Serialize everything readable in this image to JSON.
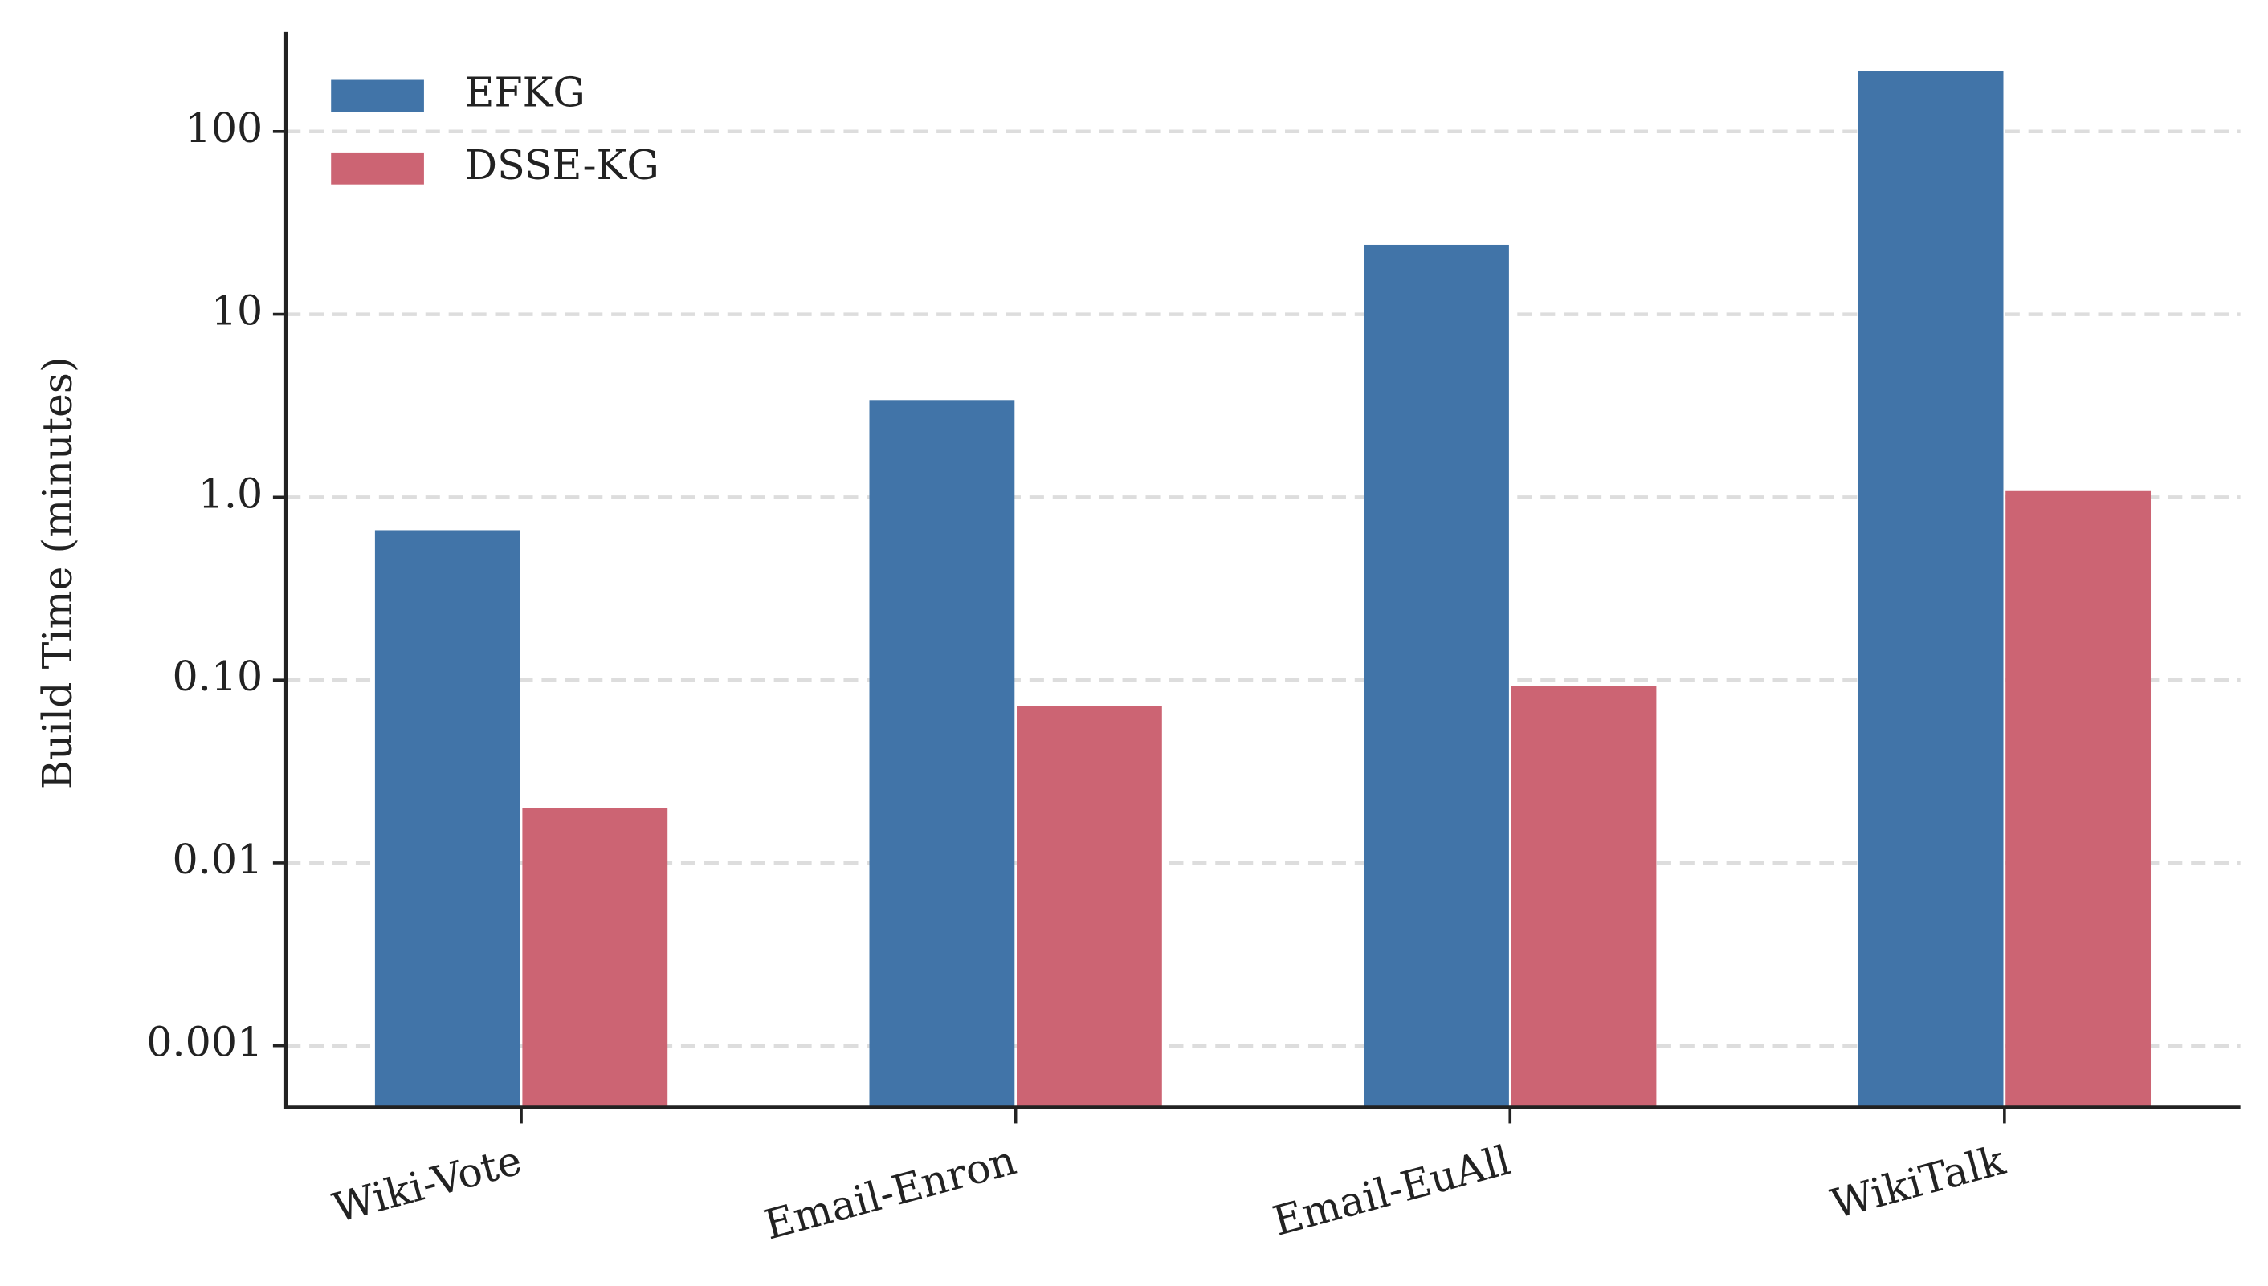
{
  "chart_data": {
    "type": "bar",
    "ylabel": "Build Time (minutes)",
    "categories": [
      "Wiki-Vote",
      "Email-Enron",
      "Email-EuAll",
      "WikiTalk"
    ],
    "series": [
      {
        "name": "EFKG",
        "color": "#4174a8",
        "values": [
          0.66,
          3.4,
          24,
          215
        ]
      },
      {
        "name": "DSSE-KG",
        "color": "#cc6473",
        "values": [
          0.02,
          0.072,
          0.093,
          1.08
        ]
      }
    ],
    "log_scale": true,
    "ylim": [
      0.00046,
      350
    ],
    "yticks": [
      0.001,
      0.01,
      {
        "value": 0.1,
        "label": "0.10"
      },
      {
        "value": 1,
        "label": "1.0"
      },
      10,
      100
    ],
    "grid": true,
    "legend": "upper left"
  }
}
